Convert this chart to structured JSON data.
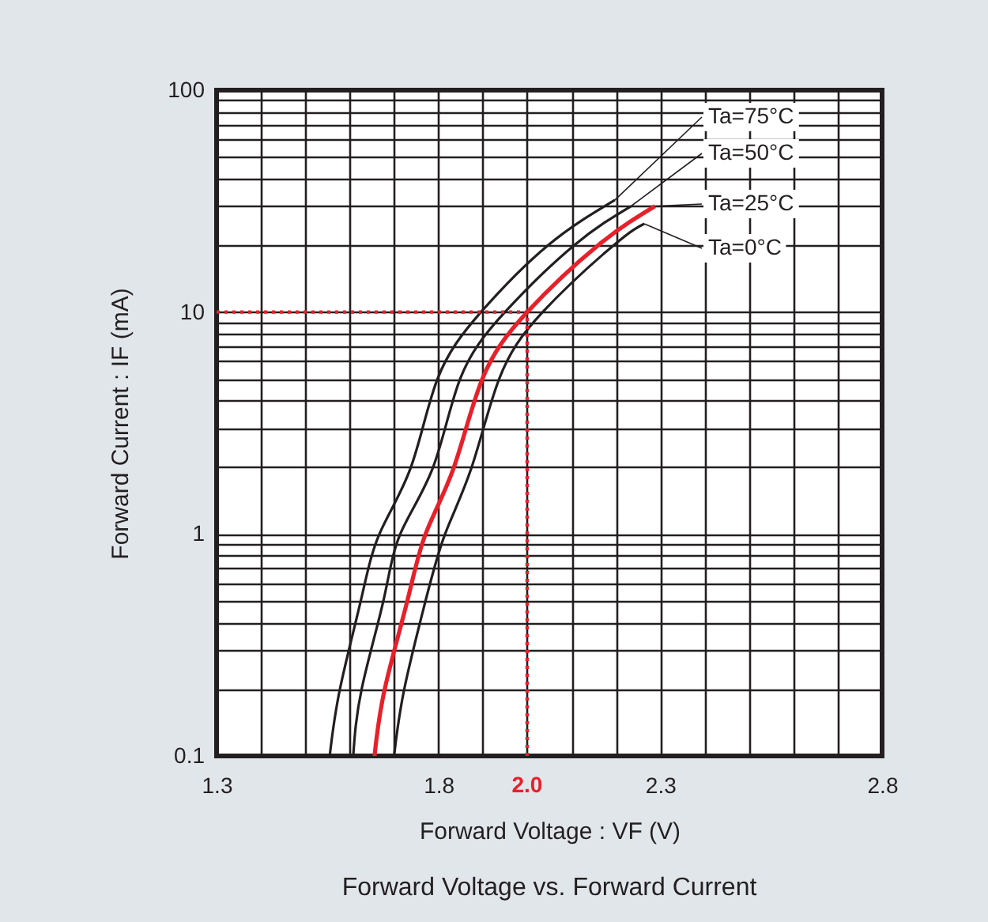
{
  "chart_data": {
    "type": "line",
    "title": "Forward Voltage vs. Forward Current",
    "xlabel": "Forward Voltage : VF (V)",
    "ylabel": "Forward Current : IF (mA)",
    "log": "y",
    "grid": true,
    "marker": "none",
    "line_style": "solid",
    "xlim": [
      1.3,
      2.8
    ],
    "xticks": [
      1.3,
      {
        "value": 1.4,
        "label": null
      },
      {
        "value": 1.5,
        "label": null
      },
      {
        "value": 1.6,
        "label": null
      },
      {
        "value": 1.7,
        "label": null
      },
      1.8,
      {
        "value": 1.9,
        "label": null
      },
      {
        "value": 2.0,
        "label": null
      },
      {
        "value": 2.1,
        "label": null
      },
      {
        "value": 2.2,
        "label": null
      },
      2.3,
      {
        "value": 2.4,
        "label": null
      },
      {
        "value": 2.5,
        "label": null
      },
      {
        "value": 2.6,
        "label": null
      },
      {
        "value": 2.7,
        "label": null
      },
      2.8
    ],
    "ylim": [
      0.1,
      100
    ],
    "yticks": [
      0.1,
      {
        "value": 0.2,
        "label": null
      },
      {
        "value": 0.3,
        "label": null
      },
      {
        "value": 0.4,
        "label": null
      },
      {
        "value": 0.5,
        "label": null
      },
      {
        "value": 0.6,
        "label": null
      },
      {
        "value": 0.7,
        "label": null
      },
      {
        "value": 0.8,
        "label": null
      },
      {
        "value": 0.9,
        "label": null
      },
      1,
      {
        "value": 2,
        "label": null
      },
      {
        "value": 3,
        "label": null
      },
      {
        "value": 4,
        "label": null
      },
      {
        "value": 5,
        "label": null
      },
      {
        "value": 6,
        "label": null
      },
      {
        "value": 7,
        "label": null
      },
      {
        "value": 8,
        "label": null
      },
      {
        "value": 9,
        "label": null
      },
      10,
      {
        "value": 20,
        "label": null
      },
      {
        "value": 30,
        "label": null
      },
      {
        "value": 40,
        "label": null
      },
      {
        "value": 50,
        "label": null
      },
      {
        "value": 60,
        "label": null
      },
      {
        "value": 70,
        "label": null
      },
      {
        "value": 80,
        "label": null
      },
      {
        "value": 90,
        "label": null
      },
      100
    ],
    "series": [
      {
        "color": "#231f20",
        "x": [
          1.555,
          1.578,
          1.625,
          1.667,
          1.738,
          1.798,
          1.896,
          2.047,
          2.198
        ],
        "values": [
          0.1,
          0.2,
          0.5,
          1,
          2,
          5,
          10,
          20,
          32
        ]
      },
      {
        "color": "#231f20",
        "x": [
          1.608,
          1.627,
          1.676,
          1.714,
          1.788,
          1.849,
          1.95,
          2.106,
          2.234
        ],
        "values": [
          0.1,
          0.2,
          0.5,
          1,
          2,
          5,
          10,
          20,
          30
        ]
      },
      {
        "color": "#e8202a",
        "x": [
          1.656,
          1.679,
          1.73,
          1.771,
          1.835,
          1.899,
          2.0,
          2.16,
          2.288
        ],
        "values": [
          0.1,
          0.2,
          0.5,
          1,
          2,
          5,
          10,
          20,
          30
        ]
      },
      {
        "color": "#231f20",
        "x": [
          1.7,
          1.723,
          1.771,
          1.815,
          1.875,
          1.937,
          2.035,
          2.195,
          2.264
        ],
        "values": [
          0.1,
          0.2,
          0.5,
          1,
          2,
          5,
          10,
          20,
          25
        ]
      }
    ],
    "annotations": [
      {
        "text": "Ta=75°C",
        "x": 2.198,
        "y": 32
      },
      {
        "text": "Ta=50°C",
        "x": 2.234,
        "y": 30
      },
      {
        "text": "Ta=25°C",
        "x": 2.288,
        "y": 30
      },
      {
        "text": "Ta=0°C",
        "x": 2.264,
        "y": 25
      }
    ],
    "ref_lines": [
      {
        "axis": "x",
        "value": 2.0,
        "label": "2.0",
        "color": "#e8202a",
        "line_style": "dotted"
      },
      {
        "axis": "y",
        "value": 10,
        "color": "#e8202a",
        "line_style": "dotted"
      }
    ]
  }
}
